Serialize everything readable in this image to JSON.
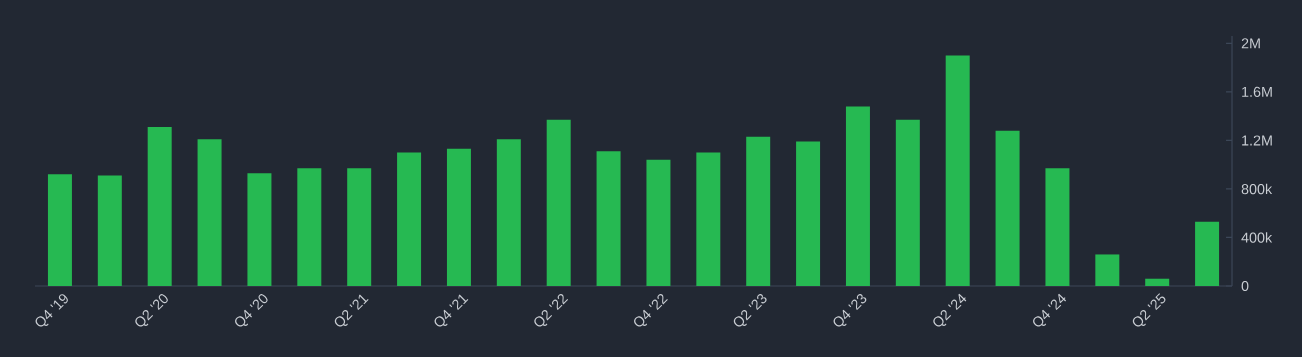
{
  "chart_data": {
    "type": "bar",
    "categories": [
      "Q4 '19",
      null,
      "Q2 '20",
      null,
      "Q4 '20",
      null,
      "Q2 '21",
      null,
      "Q4 '21",
      null,
      "Q2 '22",
      null,
      "Q4 '22",
      null,
      "Q2 '23",
      null,
      "Q4 '23",
      null,
      "Q2 '24",
      null,
      "Q4 '24",
      null,
      "Q2 '25",
      null
    ],
    "values": [
      920000,
      910000,
      1310000,
      1210000,
      930000,
      970000,
      970000,
      1100000,
      1130000,
      1210000,
      1370000,
      1110000,
      1040000,
      1100000,
      1230000,
      1190000,
      1480000,
      1370000,
      1900000,
      1280000,
      970000,
      260000,
      60000,
      530000
    ],
    "color": "#26b952",
    "ylim": [
      0,
      2060000
    ],
    "yticks": [
      0,
      {
        "value": 400000,
        "label": "400k"
      },
      {
        "value": 800000,
        "label": "800k"
      },
      {
        "value": 1200000,
        "label": "1.2M"
      },
      {
        "value": 1600000,
        "label": "1.6M"
      },
      {
        "value": 2000000,
        "label": "2M"
      }
    ],
    "grid": false
  }
}
